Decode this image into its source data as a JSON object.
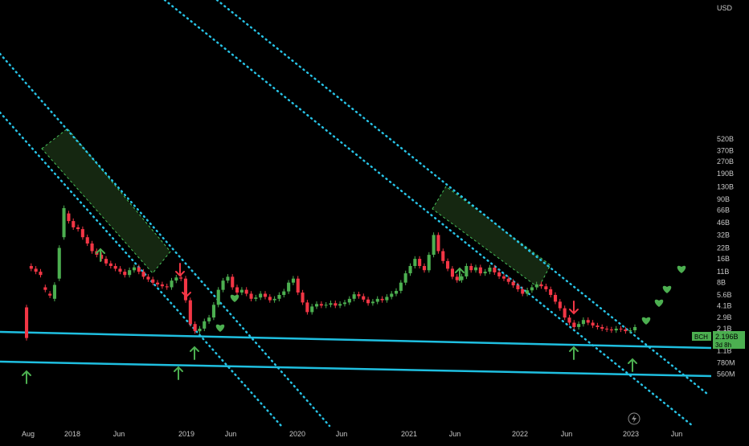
{
  "chart_data": {
    "type": "candlestick",
    "yaxis": {
      "scale": "log",
      "unit": "USD",
      "ticks": [
        "520B",
        "370B",
        "270B",
        "190B",
        "130B",
        "90B",
        "66B",
        "46B",
        "32B",
        "22B",
        "16B",
        "11B",
        "8B",
        "5.6B",
        "4.1B",
        "2.9B",
        "2.1B",
        "1.5B",
        "1.1B",
        "780M",
        "560M"
      ]
    },
    "xaxis": {
      "ticks": [
        "Aug",
        "2018",
        "Jun",
        "2019",
        "Jun",
        "2020",
        "Jun",
        "2021",
        "Jun",
        "2022",
        "Jun",
        "2023",
        "Jun"
      ]
    },
    "price_badge": {
      "symbol": "BCH",
      "value": "2.196B",
      "countdown": "3d 8h"
    },
    "candles": [
      [
        3.9,
        1.6
      ],
      [
        13,
        12
      ],
      [
        12,
        11
      ],
      [
        11,
        10
      ],
      [
        7,
        6.5
      ],
      [
        5.8,
        5.5
      ],
      [
        5,
        7.5
      ],
      [
        9,
        22
      ],
      [
        30,
        70
      ],
      [
        60,
        48
      ],
      [
        48,
        40
      ],
      [
        40,
        38
      ],
      [
        38,
        30
      ],
      [
        30,
        25
      ],
      [
        25,
        20
      ],
      [
        20,
        18
      ],
      [
        18,
        16
      ],
      [
        16,
        14
      ],
      [
        14,
        13
      ],
      [
        13,
        12
      ],
      [
        12,
        11
      ],
      [
        11,
        10
      ],
      [
        10,
        11.5
      ],
      [
        11.5,
        12.5
      ],
      [
        12.5,
        11
      ],
      [
        11,
        9.5
      ],
      [
        9.5,
        8.8
      ],
      [
        8.8,
        8
      ],
      [
        8,
        7.6
      ],
      [
        7.6,
        7.2
      ],
      [
        7.2,
        7
      ],
      [
        7,
        8.5
      ],
      [
        8.5,
        9.3
      ],
      [
        9.3,
        9
      ],
      [
        9,
        4.8
      ],
      [
        4.8,
        2.4
      ],
      [
        2.4,
        1.95
      ],
      [
        1.95,
        2.1
      ],
      [
        2.1,
        2.6
      ],
      [
        2.6,
        2.9
      ],
      [
        2.9,
        4.2
      ],
      [
        4.2,
        6.5
      ],
      [
        6.5,
        8.5
      ],
      [
        8.5,
        9.5
      ],
      [
        9.5,
        7
      ],
      [
        7,
        6
      ],
      [
        6,
        6.5
      ],
      [
        6.5,
        5.8
      ],
      [
        5.8,
        5
      ],
      [
        5,
        5.2
      ],
      [
        5.2,
        5.8
      ],
      [
        5.8,
        5.3
      ],
      [
        5.3,
        4.8
      ],
      [
        4.8,
        5
      ],
      [
        5,
        5.6
      ],
      [
        5.6,
        6.2
      ],
      [
        6.2,
        8
      ],
      [
        8,
        9
      ],
      [
        9,
        6
      ],
      [
        6,
        4.5
      ],
      [
        4.5,
        3.4
      ],
      [
        3.4,
        4
      ],
      [
        4,
        4.3
      ],
      [
        4.3,
        4.1
      ],
      [
        4.1,
        4.2
      ],
      [
        4.2,
        4.4
      ],
      [
        4.4,
        4.1
      ],
      [
        4.1,
        4.3
      ],
      [
        4.3,
        4.5
      ],
      [
        4.5,
        5
      ],
      [
        5,
        5.7
      ],
      [
        5.7,
        5.4
      ],
      [
        5.4,
        4.9
      ],
      [
        4.9,
        4.4
      ],
      [
        4.4,
        4.6
      ],
      [
        4.6,
        5
      ],
      [
        5,
        4.8
      ],
      [
        4.8,
        5.3
      ],
      [
        5.3,
        5.8
      ],
      [
        5.8,
        6.3
      ],
      [
        6.3,
        8
      ],
      [
        8,
        10.5
      ],
      [
        10.5,
        13
      ],
      [
        13,
        16
      ],
      [
        16,
        13
      ],
      [
        13,
        11.5
      ],
      [
        11.5,
        18
      ],
      [
        18,
        32
      ],
      [
        32,
        20
      ],
      [
        20,
        15
      ],
      [
        15,
        12
      ],
      [
        12,
        9.5
      ],
      [
        9.5,
        8.6
      ],
      [
        8.6,
        9.6
      ],
      [
        9.6,
        13
      ],
      [
        13,
        11.5
      ],
      [
        11.5,
        12.5
      ],
      [
        12.5,
        10.5
      ],
      [
        10.5,
        11
      ],
      [
        11,
        12.4
      ],
      [
        12.4,
        10.8
      ],
      [
        10.8,
        9.6
      ],
      [
        9.6,
        9
      ],
      [
        9,
        8.2
      ],
      [
        8.2,
        7.4
      ],
      [
        7.4,
        6.6
      ],
      [
        6.6,
        5.8
      ],
      [
        5.8,
        6.4
      ],
      [
        6.4,
        7
      ],
      [
        7,
        7.6
      ],
      [
        7.6,
        7.2
      ],
      [
        7.2,
        6.6
      ],
      [
        6.6,
        5.6
      ],
      [
        5.6,
        4.6
      ],
      [
        4.6,
        3.8
      ],
      [
        3.8,
        2.9
      ],
      [
        2.9,
        2.5
      ],
      [
        2.5,
        2.2
      ],
      [
        2.2,
        2.4
      ],
      [
        2.4,
        2.7
      ],
      [
        2.7,
        2.5
      ],
      [
        2.5,
        2.3
      ],
      [
        2.3,
        2.2
      ],
      [
        2.2,
        2.1
      ],
      [
        2.1,
        2.05
      ],
      [
        2.05,
        2
      ],
      [
        2,
        2.1
      ],
      [
        2.1,
        2.05
      ],
      [
        2.05,
        1.95
      ],
      [
        1.95,
        2.0
      ],
      [
        2.0,
        2.196
      ]
    ]
  },
  "annotations": {
    "up_arrows": 7,
    "down_arrows": 3,
    "hearts": 7
  }
}
